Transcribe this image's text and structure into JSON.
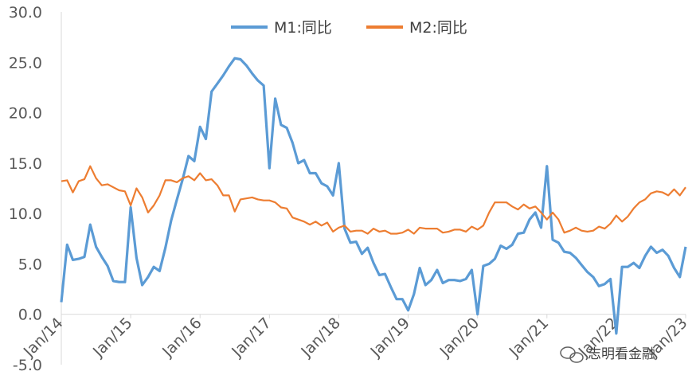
{
  "chart_data": {
    "type": "line",
    "ylim": [
      -5,
      30
    ],
    "yticks": [
      "30.0",
      "25.0",
      "20.0",
      "15.0",
      "10.0",
      "5.0",
      "0.0",
      "-5.0"
    ],
    "ytick_values": [
      30,
      25,
      20,
      15,
      10,
      5,
      0,
      -5
    ],
    "xtick_labels": [
      "Jan/14",
      "Jan/15",
      "Jan/16",
      "Jan/17",
      "Jan/18",
      "Jan/19",
      "Jan/20",
      "Jan/21",
      "Jan/22",
      "Jan/23"
    ],
    "xtick_index": [
      0,
      12,
      24,
      36,
      48,
      60,
      72,
      84,
      96,
      108
    ],
    "x_count": 109,
    "legend_position": "top-center",
    "grid": false,
    "series": [
      {
        "name": "M1:同比",
        "color": "#5b9bd5",
        "values": [
          1.2,
          6.9,
          5.4,
          5.5,
          5.7,
          8.9,
          6.7,
          5.7,
          4.8,
          3.3,
          3.2,
          3.2,
          10.6,
          5.6,
          2.9,
          3.7,
          4.7,
          4.3,
          6.6,
          9.3,
          11.4,
          13.4,
          15.7,
          15.2,
          18.6,
          17.4,
          22.1,
          22.9,
          23.7,
          24.6,
          25.4,
          25.3,
          24.7,
          23.9,
          23.2,
          22.7,
          14.5,
          21.4,
          18.8,
          18.5,
          17.0,
          15.0,
          15.3,
          14.0,
          14.0,
          13.0,
          12.7,
          11.8,
          15.0,
          8.5,
          7.1,
          7.2,
          6.0,
          6.6,
          5.1,
          3.9,
          4.0,
          2.7,
          1.5,
          1.5,
          0.4,
          2.0,
          4.6,
          2.9,
          3.4,
          4.4,
          3.1,
          3.4,
          3.4,
          3.3,
          3.5,
          4.4,
          0.0,
          4.8,
          5.0,
          5.5,
          6.8,
          6.5,
          6.9,
          8.0,
          8.1,
          9.4,
          10.1,
          8.6,
          14.7,
          7.4,
          7.1,
          6.2,
          6.1,
          5.6,
          4.9,
          4.2,
          3.7,
          2.8,
          3.0,
          3.5,
          -1.9,
          4.7,
          4.7,
          5.1,
          4.6,
          5.8,
          6.7,
          6.1,
          6.4,
          5.8,
          4.6,
          3.7,
          6.7
        ]
      },
      {
        "name": "M2:同比",
        "color": "#ed7d31",
        "values": [
          13.2,
          13.3,
          12.1,
          13.2,
          13.4,
          14.7,
          13.5,
          12.8,
          12.9,
          12.6,
          12.3,
          12.2,
          10.8,
          12.5,
          11.6,
          10.1,
          10.8,
          11.8,
          13.3,
          13.3,
          13.1,
          13.5,
          13.7,
          13.3,
          14.0,
          13.3,
          13.4,
          12.8,
          11.8,
          11.8,
          10.2,
          11.4,
          11.5,
          11.6,
          11.4,
          11.3,
          11.3,
          11.1,
          10.6,
          10.5,
          9.6,
          9.4,
          9.2,
          8.9,
          9.2,
          8.8,
          9.1,
          8.2,
          8.6,
          8.8,
          8.2,
          8.3,
          8.3,
          8.0,
          8.5,
          8.2,
          8.3,
          8.0,
          8.0,
          8.1,
          8.4,
          8.0,
          8.6,
          8.5,
          8.5,
          8.5,
          8.1,
          8.2,
          8.4,
          8.4,
          8.2,
          8.7,
          8.4,
          8.8,
          10.1,
          11.1,
          11.1,
          11.1,
          10.7,
          10.4,
          10.9,
          10.5,
          10.7,
          10.1,
          9.4,
          10.1,
          9.4,
          8.1,
          8.3,
          8.6,
          8.3,
          8.2,
          8.3,
          8.7,
          8.5,
          9.0,
          9.8,
          9.2,
          9.7,
          10.5,
          11.1,
          11.4,
          12.0,
          12.2,
          12.1,
          11.8,
          12.4,
          11.8,
          12.6
        ]
      }
    ]
  },
  "legend": {
    "m1_label": "M1:同比",
    "m2_label": "M2:同比"
  },
  "watermark": {
    "text": "志明看金融",
    "icon": "wechat-icon"
  }
}
